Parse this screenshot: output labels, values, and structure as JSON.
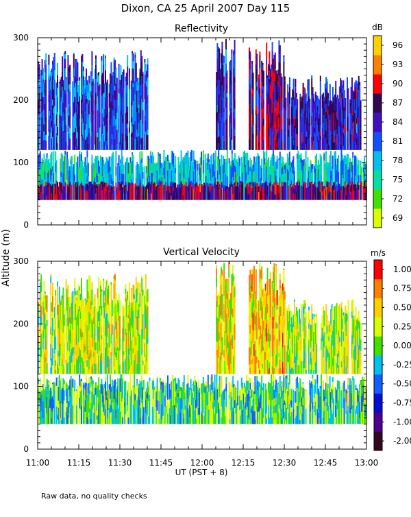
{
  "title": "Dixon, CA 25 April 2007  Day 115",
  "y_axis_label": "Altitude (m)",
  "x_axis_label": "UT  (PST + 8)",
  "footnote": "Raw data, no quality checks",
  "x_ticks": [
    "11:00",
    "11:15",
    "11:30",
    "11:45",
    "12:00",
    "12:15",
    "12:30",
    "12:45",
    "13:00"
  ],
  "y_ticks": [
    "0",
    "100",
    "200",
    "300"
  ],
  "chart_data": [
    {
      "type": "heatmap",
      "title": "Reflectivity",
      "xlabel": "UT  (PST + 8)",
      "ylabel": "Altitude (m)",
      "x_range": [
        "11:00",
        "13:00"
      ],
      "ylim": [
        0,
        300
      ],
      "colorbar": {
        "unit": "dB",
        "range": [
          67.5,
          99
        ],
        "tick_labels": [
          "96",
          "93",
          "90",
          "87",
          "84",
          "81",
          "78",
          "75",
          "72",
          "69"
        ],
        "tick_values": [
          96,
          93,
          90,
          87,
          84,
          81,
          78,
          75,
          72,
          69
        ],
        "colors": [
          "#d8ff00",
          "#40e000",
          "#00e0a0",
          "#00c0f0",
          "#1050ff",
          "#4010c0",
          "#300850",
          "#ff0000",
          "#ff8000",
          "#ffd000"
        ]
      },
      "regions": [
        {
          "t_start": "11:00",
          "t_end": "13:00",
          "alt_min": 40,
          "alt_max": 120,
          "typical_db": 78
        },
        {
          "t_start": "11:00",
          "t_end": "11:40",
          "alt_min": 120,
          "alt_max": 280,
          "typical_db": 83
        },
        {
          "t_start": "12:05",
          "t_end": "12:12",
          "alt_min": 120,
          "alt_max": 300,
          "typical_db": 84
        },
        {
          "t_start": "12:17",
          "t_end": "12:30",
          "alt_min": 120,
          "alt_max": 300,
          "typical_db": 87
        },
        {
          "t_start": "12:30",
          "t_end": "12:58",
          "alt_min": 120,
          "alt_max": 240,
          "typical_db": 85
        },
        {
          "t_start": "11:00",
          "t_end": "13:00",
          "alt_min": 40,
          "alt_max": 70,
          "typical_db": 88
        }
      ]
    },
    {
      "type": "heatmap",
      "title": "Vertical Velocity",
      "xlabel": "UT  (PST + 8)",
      "ylabel": "Altitude (m)",
      "x_range": [
        "11:00",
        "13:00"
      ],
      "ylim": [
        0,
        300
      ],
      "colorbar": {
        "unit": "m/s",
        "range": [
          -2.0,
          1.25
        ],
        "tick_labels": [
          "1.00",
          "0.75",
          "0.50",
          "0.25",
          "0.00",
          "-0.25",
          "-0.50",
          "-0.75",
          "-1.00",
          "-2.00"
        ],
        "tick_values": [
          1.0,
          0.75,
          0.5,
          0.25,
          0.0,
          -0.25,
          -0.5,
          -0.75,
          -1.0,
          -2.0
        ],
        "colors": [
          "#300820",
          "#500090",
          "#0010d0",
          "#1060ff",
          "#00c0f0",
          "#40e000",
          "#d8ff00",
          "#ffd000",
          "#ff8000",
          "#ff0000"
        ]
      },
      "regions": [
        {
          "t_start": "11:00",
          "t_end": "13:00",
          "alt_min": 40,
          "alt_max": 120,
          "typical_ms": -0.3
        },
        {
          "t_start": "11:00",
          "t_end": "11:40",
          "alt_min": 120,
          "alt_max": 280,
          "typical_ms": 0.1
        },
        {
          "t_start": "12:05",
          "t_end": "12:12",
          "alt_min": 120,
          "alt_max": 300,
          "typical_ms": 0.3
        },
        {
          "t_start": "12:17",
          "t_end": "12:30",
          "alt_min": 120,
          "alt_max": 300,
          "typical_ms": 0.4
        },
        {
          "t_start": "12:30",
          "t_end": "12:58",
          "alt_min": 120,
          "alt_max": 240,
          "typical_ms": 0.0
        }
      ]
    }
  ]
}
